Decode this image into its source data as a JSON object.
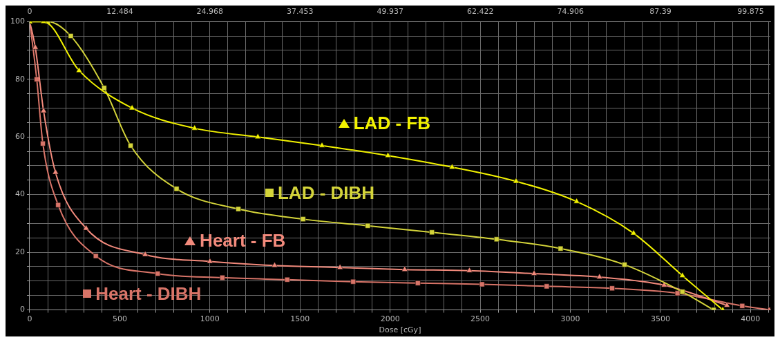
{
  "chart_data": {
    "type": "line",
    "xlabel": "Dose [cGy]",
    "xlim": [
      0,
      4110
    ],
    "xticks": [
      0,
      {
        "value": 100,
        "label": null
      },
      {
        "value": 200,
        "label": null
      },
      {
        "value": 300,
        "label": null
      },
      {
        "value": 400,
        "label": null
      },
      500,
      {
        "value": 600,
        "label": null
      },
      {
        "value": 700,
        "label": null
      },
      {
        "value": 800,
        "label": null
      },
      {
        "value": 900,
        "label": null
      },
      1000,
      {
        "value": 1100,
        "label": null
      },
      {
        "value": 1200,
        "label": null
      },
      {
        "value": 1300,
        "label": null
      },
      {
        "value": 1400,
        "label": null
      },
      1500,
      {
        "value": 1600,
        "label": null
      },
      {
        "value": 1700,
        "label": null
      },
      {
        "value": 1800,
        "label": null
      },
      {
        "value": 1900,
        "label": null
      },
      2000,
      {
        "value": 2100,
        "label": null
      },
      {
        "value": 2200,
        "label": null
      },
      {
        "value": 2300,
        "label": null
      },
      {
        "value": 2400,
        "label": null
      },
      2500,
      {
        "value": 2600,
        "label": null
      },
      {
        "value": 2700,
        "label": null
      },
      {
        "value": 2800,
        "label": null
      },
      {
        "value": 2900,
        "label": null
      },
      3000,
      {
        "value": 3100,
        "label": null
      },
      {
        "value": 3200,
        "label": null
      },
      {
        "value": 3300,
        "label": null
      },
      {
        "value": 3400,
        "label": null
      },
      3500,
      {
        "value": 3600,
        "label": null
      },
      {
        "value": 3700,
        "label": null
      },
      {
        "value": 3800,
        "label": null
      },
      {
        "value": 3900,
        "label": null
      },
      4000,
      {
        "value": 4100,
        "label": null
      }
    ],
    "x2lim": [
      0,
      102.6
    ],
    "x2ticks": [
      0,
      12.484,
      24.968,
      37.453,
      49.937,
      62.422,
      74.906,
      87.39,
      {
        "value": 99.875,
        "label": "99.875"
      }
    ],
    "ylim": [
      0,
      100
    ],
    "yticks": [
      0,
      {
        "value": 5,
        "label": null
      },
      {
        "value": 10,
        "label": null
      },
      {
        "value": 15,
        "label": null
      },
      20,
      {
        "value": 25,
        "label": null
      },
      {
        "value": 30,
        "label": null
      },
      {
        "value": 35,
        "label": null
      },
      40,
      {
        "value": 45,
        "label": null
      },
      {
        "value": 50,
        "label": null
      },
      {
        "value": 55,
        "label": null
      },
      60,
      {
        "value": 65,
        "label": null
      },
      {
        "value": 70,
        "label": null
      },
      {
        "value": 75,
        "label": null
      },
      80,
      {
        "value": 85,
        "label": null
      },
      {
        "value": 90,
        "label": null
      },
      {
        "value": 95,
        "label": null
      },
      100
    ],
    "grid": true,
    "legend": "bottom left",
    "series": [
      {
        "name": "LAD - FB",
        "color": "#f2f200",
        "marker": "triangle",
        "x": [
          0,
          77,
          274,
          568,
          915,
          1266,
          1622,
          1988,
          2344,
          2699,
          3035,
          3351,
          3622,
          3846
        ],
        "values": [
          100,
          100,
          83,
          70,
          63,
          60,
          57,
          53.5,
          49.5,
          44.6,
          37.6,
          26.6,
          11.9,
          0
        ]
      },
      {
        "name": "LAD - DIBH",
        "color": "#d4d43a",
        "marker": "square",
        "x": [
          0,
          100,
          228,
          413,
          560,
          815,
          1158,
          1517,
          1876,
          2232,
          2591,
          2946,
          3301,
          3622,
          3795
        ],
        "values": [
          100,
          100,
          95,
          77,
          57,
          42,
          35,
          31.5,
          29.2,
          26.9,
          24.5,
          21.3,
          15.7,
          6.3,
          0
        ]
      },
      {
        "name": "Heart - FB",
        "color": "#f28a7c",
        "marker": "triangle",
        "x": [
          0,
          31,
          77,
          143,
          313,
          641,
          1000,
          1359,
          1722,
          2081,
          2440,
          2799,
          3162,
          3521,
          3869
        ],
        "values": [
          100,
          91,
          69,
          47.7,
          28.3,
          19.2,
          16.8,
          15.4,
          14.7,
          14,
          13.6,
          12.6,
          11.4,
          8.6,
          1.6
        ]
      },
      {
        "name": "Heart - DIBH",
        "color": "#d87468",
        "marker": "square",
        "x": [
          0,
          39,
          73,
          158,
          367,
          710,
          1069,
          1429,
          1795,
          2154,
          2510,
          2869,
          3232,
          3595,
          3954,
          4110
        ],
        "values": [
          100,
          80,
          57.7,
          36.4,
          18.7,
          12.6,
          11.2,
          10.5,
          9.8,
          9.3,
          8.9,
          8.2,
          7.5,
          5.8,
          1.4,
          0
        ]
      }
    ]
  }
}
